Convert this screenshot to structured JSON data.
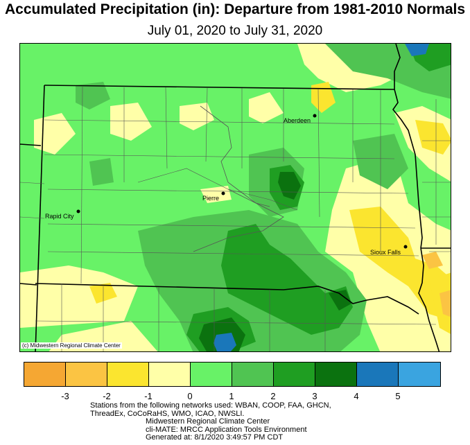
{
  "title": "Accumulated Precipitation (in): Departure from 1981-2010 Normals",
  "subtitle": "July 01, 2020 to July 31, 2020",
  "credit": "(c) Midwestern Regional Climate Center",
  "cities": [
    {
      "name": "Aberdeen"
    },
    {
      "name": "Pierre"
    },
    {
      "name": "Rapid City"
    },
    {
      "name": "Sioux Falls"
    }
  ],
  "legend": {
    "colors": [
      "#f5a733",
      "#fbc443",
      "#fbe52f",
      "#ffffa8",
      "#68f267",
      "#50c452",
      "#1f9e22",
      "#0b720f",
      "#1a77ba",
      "#3aa4e0"
    ],
    "ticks": [
      "-3",
      "-2",
      "-1",
      "0",
      "1",
      "2",
      "3",
      "4",
      "5"
    ]
  },
  "footer": {
    "line1": "Stations from the following networks used: WBAN, COOP, FAA, GHCN,",
    "line2": "ThreadEx, CoCoRaHS, WMO, ICAO, NWSLI.",
    "line3": "Midwestern Regional Climate Center",
    "line4": "cli-MATE: MRCC Application Tools Environment",
    "line5": "Generated at: 8/1/2020 3:49:57 PM CDT"
  }
}
